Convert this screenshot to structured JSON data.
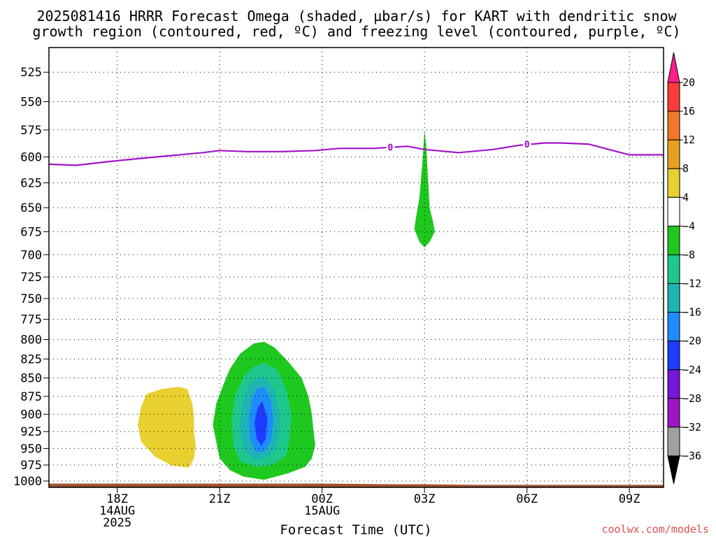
{
  "title_line1": "2025081416 HRRR Forecast Omega (shaded, µbar/s) for KART with dendritic snow",
  "title_line2": "growth region (contoured, red, ºC) and freezing level (contoured, purple, ºC)",
  "watermark": "coolwx.com/models",
  "chart_data": {
    "type": "heatmap",
    "xlabel": "Forecast Time (UTC)",
    "ylabel": "",
    "x_range_hours": [
      16,
      34
    ],
    "ylim": [
      1010,
      505
    ],
    "yticks": [
      525,
      550,
      575,
      600,
      625,
      650,
      675,
      700,
      725,
      750,
      775,
      800,
      825,
      850,
      875,
      900,
      925,
      950,
      975,
      1000
    ],
    "xticks": [
      {
        "hour": 18,
        "line1": "18Z",
        "line2": "14AUG",
        "line3": "2025"
      },
      {
        "hour": 21,
        "line1": "21Z",
        "line2": "",
        "line3": ""
      },
      {
        "hour": 24,
        "line1": "00Z",
        "line2": "15AUG",
        "line3": ""
      },
      {
        "hour": 27,
        "line1": "03Z",
        "line2": "",
        "line3": ""
      },
      {
        "hour": 30,
        "line1": "06Z",
        "line2": "",
        "line3": ""
      },
      {
        "hour": 33,
        "line1": "09Z",
        "line2": "",
        "line3": ""
      }
    ],
    "grid": true,
    "colorbar": {
      "levels": [
        20,
        16,
        12,
        8,
        4,
        -4,
        -8,
        -12,
        -16,
        -20,
        -24,
        -28,
        -32,
        -36
      ],
      "colors": [
        "#ff3c3c",
        "#f07828",
        "#e8a020",
        "#e8d030",
        "#ffffff",
        "#1ec81e",
        "#1ec88c",
        "#1eb4b4",
        "#1e8cff",
        "#1e3cff",
        "#7814dc",
        "#a014c8",
        "#a0a0a0"
      ],
      "top_arrow_color": "#ff1e8c",
      "bottom_arrow_color": "#000000"
    },
    "freezing_level": {
      "color": "#a014c8",
      "label": "0",
      "points": [
        [
          16.0,
          607
        ],
        [
          16.8,
          608
        ],
        [
          17.6,
          605
        ],
        [
          18.5,
          602
        ],
        [
          19.5,
          599
        ],
        [
          20.5,
          596
        ],
        [
          21.0,
          594
        ],
        [
          21.8,
          595
        ],
        [
          22.8,
          595
        ],
        [
          23.8,
          594
        ],
        [
          24.5,
          592
        ],
        [
          25.5,
          592
        ],
        [
          26.5,
          590
        ],
        [
          27.0,
          593
        ],
        [
          28.0,
          596
        ],
        [
          29.0,
          593
        ],
        [
          29.8,
          589
        ],
        [
          30.5,
          587
        ],
        [
          31.0,
          587
        ],
        [
          31.8,
          588
        ],
        [
          32.4,
          593
        ],
        [
          33.0,
          598
        ],
        [
          34.0,
          598
        ]
      ],
      "label_positions": [
        [
          26.0,
          591
        ],
        [
          30.0,
          588
        ]
      ]
    },
    "omega_regions": [
      {
        "name": "green plume 03Z",
        "value_range": [
          -8,
          -4
        ],
        "color": "#1ec81e",
        "points": [
          [
            27.0,
            575
          ],
          [
            27.05,
            590
          ],
          [
            27.1,
            620
          ],
          [
            27.15,
            650
          ],
          [
            27.25,
            665
          ],
          [
            27.3,
            675
          ],
          [
            27.15,
            686
          ],
          [
            27.0,
            692
          ],
          [
            26.85,
            686
          ],
          [
            26.7,
            672
          ],
          [
            26.75,
            660
          ],
          [
            26.85,
            640
          ],
          [
            26.95,
            600
          ]
        ]
      },
      {
        "name": "yellow positive area",
        "value_range": [
          4,
          8
        ],
        "color": "#e8d030",
        "points": [
          [
            19.8,
            862
          ],
          [
            20.05,
            865
          ],
          [
            20.2,
            885
          ],
          [
            20.25,
            905
          ],
          [
            20.25,
            925
          ],
          [
            20.3,
            945
          ],
          [
            20.25,
            965
          ],
          [
            20.1,
            979
          ],
          [
            19.6,
            976
          ],
          [
            19.1,
            962
          ],
          [
            18.7,
            940
          ],
          [
            18.6,
            915
          ],
          [
            18.7,
            890
          ],
          [
            18.85,
            872
          ],
          [
            19.3,
            865
          ]
        ]
      },
      {
        "name": "omega -4 contour",
        "value_range": [
          -8,
          -4
        ],
        "color": "#1ec81e",
        "points": [
          [
            22.0,
            805
          ],
          [
            22.3,
            803
          ],
          [
            22.6,
            810
          ],
          [
            23.0,
            828
          ],
          [
            23.4,
            850
          ],
          [
            23.6,
            875
          ],
          [
            23.7,
            900
          ],
          [
            23.75,
            925
          ],
          [
            23.8,
            945
          ],
          [
            23.7,
            965
          ],
          [
            23.5,
            978
          ],
          [
            23.0,
            988
          ],
          [
            22.3,
            998
          ],
          [
            21.7,
            993
          ],
          [
            21.3,
            983
          ],
          [
            21.0,
            965
          ],
          [
            20.9,
            940
          ],
          [
            20.8,
            915
          ],
          [
            20.9,
            885
          ],
          [
            21.1,
            860
          ],
          [
            21.3,
            838
          ],
          [
            21.6,
            818
          ]
        ]
      },
      {
        "name": "omega -8 contour",
        "value_range": [
          -12,
          -8
        ],
        "color": "#1ec88c",
        "points": [
          [
            22.3,
            830
          ],
          [
            22.7,
            840
          ],
          [
            22.95,
            865
          ],
          [
            23.1,
            900
          ],
          [
            23.05,
            935
          ],
          [
            22.95,
            960
          ],
          [
            22.55,
            975
          ],
          [
            22.1,
            978
          ],
          [
            21.6,
            970
          ],
          [
            21.4,
            945
          ],
          [
            21.35,
            910
          ],
          [
            21.45,
            875
          ],
          [
            21.7,
            848
          ],
          [
            22.0,
            835
          ]
        ]
      },
      {
        "name": "omega -12 contour",
        "value_range": [
          -16,
          -12
        ],
        "color": "#1eb4b4",
        "points": [
          [
            22.3,
            848
          ],
          [
            22.6,
            865
          ],
          [
            22.75,
            895
          ],
          [
            22.75,
            930
          ],
          [
            22.6,
            955
          ],
          [
            22.3,
            966
          ],
          [
            22.0,
            966
          ],
          [
            21.7,
            952
          ],
          [
            21.58,
            920
          ],
          [
            21.65,
            885
          ],
          [
            21.85,
            860
          ],
          [
            22.1,
            850
          ]
        ]
      },
      {
        "name": "omega -16 contour",
        "value_range": [
          -20,
          -16
        ],
        "color": "#1e8cff",
        "points": [
          [
            22.3,
            862
          ],
          [
            22.5,
            880
          ],
          [
            22.58,
            910
          ],
          [
            22.5,
            940
          ],
          [
            22.3,
            955
          ],
          [
            22.05,
            955
          ],
          [
            21.88,
            935
          ],
          [
            21.85,
            905
          ],
          [
            21.95,
            878
          ],
          [
            22.1,
            864
          ]
        ]
      },
      {
        "name": "omega -20 contour",
        "value_range": [
          -24,
          -20
        ],
        "color": "#1e3cff",
        "points": [
          [
            22.25,
            882
          ],
          [
            22.4,
            905
          ],
          [
            22.35,
            935
          ],
          [
            22.22,
            946
          ],
          [
            22.08,
            935
          ],
          [
            22.02,
            910
          ],
          [
            22.12,
            890
          ]
        ]
      }
    ],
    "ground": {
      "color": "#a0522d",
      "points": [
        [
          16.0,
          1004
        ],
        [
          24.0,
          1004
        ],
        [
          26.0,
          1005
        ],
        [
          27.0,
          1005
        ],
        [
          28.5,
          1006
        ],
        [
          34.0,
          1006
        ]
      ]
    }
  }
}
